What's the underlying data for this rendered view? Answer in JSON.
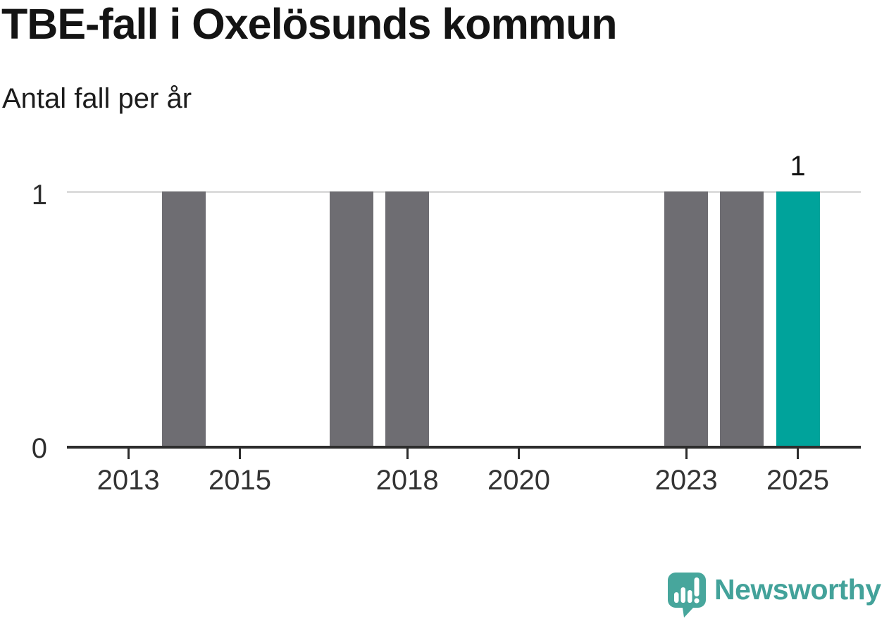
{
  "header": {
    "title": "TBE-fall i Oxelösunds kommun",
    "subtitle": "Antal fall per år"
  },
  "chart_data": {
    "type": "bar",
    "title": "TBE-fall i Oxelösunds kommun",
    "subtitle": "Antal fall per år",
    "xlabel": "",
    "ylabel": "",
    "ylim": [
      0,
      1
    ],
    "yticks": [
      0,
      1
    ],
    "categories": [
      "2013",
      "2014",
      "2015",
      "2016",
      "2017",
      "2018",
      "2019",
      "2020",
      "2021",
      "2022",
      "2023",
      "2024",
      "2025"
    ],
    "values": [
      0,
      1,
      0,
      0,
      1,
      1,
      0,
      0,
      0,
      0,
      1,
      1,
      1
    ],
    "xtick_labels": [
      "2013",
      "2015",
      "2018",
      "2020",
      "2023",
      "2025"
    ],
    "highlight_category": "2025",
    "data_labels": {
      "2025": "1"
    },
    "grid": "single horizontal gridline at y=1",
    "legend_position": "none",
    "colors": {
      "bar": "#6e6d72",
      "highlight_bar": "#00a39b",
      "gridline": "#dcdcdc",
      "axis_line": "#2d2d2d",
      "tick_text": "#333333",
      "title_text": "#141414"
    }
  },
  "branding": {
    "name": "Newsworthy",
    "logo_icon": "newsworthy-speech-bubble-bar-chart-icon",
    "text_color": "#43a29a",
    "icon_color": "#47a69c"
  }
}
